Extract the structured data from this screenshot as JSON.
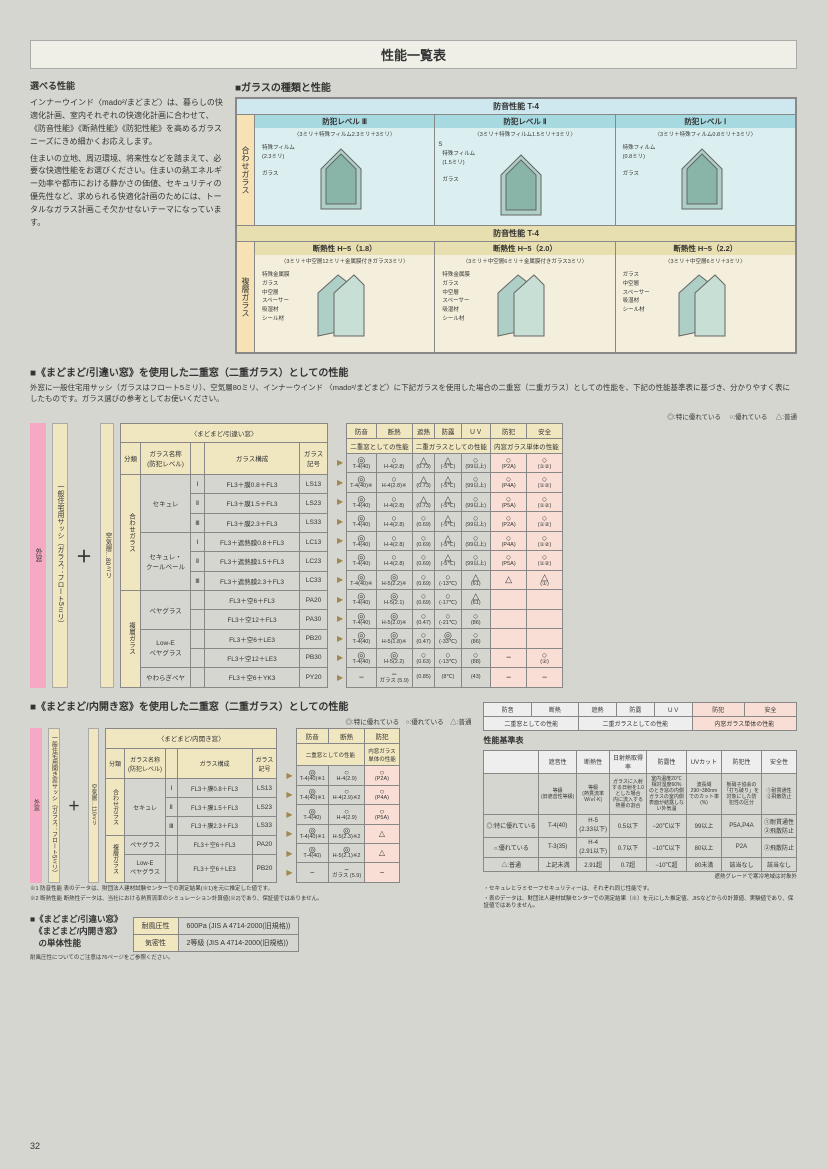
{
  "page_number": "32",
  "title": "性能一覧表",
  "intro": {
    "heading": "選べる性能",
    "p1": "インナーウインド〈mado²/まどまど〉は、暮らしの快適化計画、室内それぞれの快適化計画に合わせて、《防音性能》《断熱性能》《防犯性能》を高めるガラスニーズにきめ細かくお応えします。",
    "p2": "住まいの立地、周辺環境、将来性などを踏まえて、必要な快適性能をお選びください。住まいの熱エネルギー効率や都市における静かさの価値、セキュリティの優先性など、求められる快適化計画のためには、トータルなガラス計画こそ欠かせないテーマになっています。"
  },
  "glass_types": {
    "heading": "■ガラスの種類と性能",
    "band1": "防音性能  T-4",
    "band2": "防音性能  T-4",
    "group1_label": "合わせガラス",
    "group2_label": "複層ガラス",
    "levels1": [
      {
        "head": "防犯レベル Ⅲ",
        "sub": "〈3ミリ＋特殊フィルム2.3ミリ＋3ミリ〉",
        "l1": "特殊フィルム",
        "l1s": "(2.3ミリ)",
        "l2": "ガラス"
      },
      {
        "head": "防犯レベル Ⅱ",
        "sub": "〈3ミリ＋特殊フィルム1.5ミリ＋3ミリ〉",
        "l1": "特殊フィルム",
        "l1s": "(1.5ミリ)",
        "l2": "ガラス"
      },
      {
        "head": "防犯レベル Ⅰ",
        "sub": "〈3ミリ＋特殊フィルム0.8ミリ＋3ミリ〉",
        "l1": "特殊フィルム",
        "l1s": "(0.8ミリ)",
        "l2": "ガラス"
      }
    ],
    "levels2": [
      {
        "head": "断熱性 H−5（1.8）",
        "sub": "〈3ミリ＋中空層12ミリ＋金属膜付きガラス3ミリ〉",
        "labels": [
          "特殊金属膜",
          "ガラス",
          "中空層",
          "スペーサー",
          "吸湿材",
          "シール材"
        ]
      },
      {
        "head": "断熱性 H−5（2.0）",
        "sub": "〈3ミリ＋中空層6ミリ＋金属膜付きガラス3ミリ〉",
        "labels": [
          "特殊金属膜",
          "ガラス",
          "中空層",
          "スペーサー",
          "吸湿材",
          "シール材"
        ]
      },
      {
        "head": "断熱性 H−5（2.2）",
        "sub": "〈3ミリ＋中空層6ミリ＋3ミリ〉",
        "labels": [
          "ガラス",
          "中空層",
          "スペーサー",
          "吸湿材",
          "シール材"
        ]
      }
    ]
  },
  "section_sliding": {
    "heading": "■《まどまど/引違い窓》を使用した二重窓（二重ガラス）としての性能",
    "desc": "外窓に一般住宅用サッシ（ガラスはフロート5ミリ）、空気層80ミリ、インナーウインド 〈mado²/まどまど〉に下記ガラスを使用した場合の二重窓（二重ガラス）としての性能を、下記の性能基準表に基づき、分かりやすく表にしたものです。ガラス選びの参考としてお使いください。",
    "legend": "◎:特に優れている 　○:優れている 　△:普通",
    "outer_label": "外窓",
    "vbar_label": "一般住宅用サッシ（ガラス：フロート5ミリ）",
    "plus_label": "空気層…80ミリ",
    "tbl1": {
      "title": "〈まどまど/引違い窓〉",
      "cols": [
        "分類",
        "ガラス名称\n(防犯レベル)",
        "",
        "ガラス構成",
        "ガラス\n記号"
      ],
      "rows": [
        {
          "cat": "合わせガラス",
          "name": "セキュレ",
          "lvl": "Ⅰ",
          "comp": "FL3＋膜0.8＋FL3",
          "code": "LS13"
        },
        {
          "cat": "",
          "name": "",
          "lvl": "Ⅱ",
          "comp": "FL3＋膜1.5＋FL3",
          "code": "LS23"
        },
        {
          "cat": "",
          "name": "",
          "lvl": "Ⅲ",
          "comp": "FL3＋膜2.3＋FL3",
          "code": "LS33"
        },
        {
          "cat": "",
          "name": "セキュレ・\nクールベール",
          "lvl": "Ⅰ",
          "comp": "FL3＋遮熱膜0.8＋FL3",
          "code": "LC13"
        },
        {
          "cat": "",
          "name": "",
          "lvl": "Ⅱ",
          "comp": "FL3＋遮熱膜1.5＋FL3",
          "code": "LC23"
        },
        {
          "cat": "",
          "name": "",
          "lvl": "Ⅲ",
          "comp": "FL3＋遮熱膜2.3＋FL3",
          "code": "LC33"
        },
        {
          "cat": "複層ガラス",
          "name": "ペヤグラス",
          "lvl": "",
          "comp": "FL3＋空6＋FL3",
          "code": "PA20"
        },
        {
          "cat": "",
          "name": "",
          "lvl": "",
          "comp": "FL3＋空12＋FL3",
          "code": "PA30"
        },
        {
          "cat": "",
          "name": "Low-E\nペヤグラス",
          "lvl": "",
          "comp": "FL3＋空6＋LE3",
          "code": "PB20"
        },
        {
          "cat": "",
          "name": "",
          "lvl": "",
          "comp": "FL3＋空12＋LE3",
          "code": "PB30"
        },
        {
          "cat": "",
          "name": "やわらぎペヤ",
          "lvl": "",
          "comp": "FL3＋空6＋YK3",
          "code": "PY20"
        }
      ]
    },
    "tbl1r": {
      "heads": [
        "防音",
        "断熱",
        "遮熱",
        "防露",
        "ＵＶ",
        "防犯",
        "安全"
      ],
      "sub1": "二重窓としての性能",
      "sub2": "二重ガラスとしての性能",
      "sub3": "内窓ガラス単体の性能",
      "rows": [
        [
          "◎",
          "T-4(40)",
          "○",
          "H-4(2.8)",
          "△",
          "(0.73)",
          "△",
          "(-5℃)",
          "○",
          "(99以上)",
          "○",
          "(P2A)",
          "○",
          "(①②)"
        ],
        [
          "◎",
          "T-4(40)※",
          "○",
          "H-4(2.8)※",
          "△",
          "(0.73)",
          "△",
          "(-5℃)",
          "○",
          "(99以上)",
          "○",
          "(P4A)",
          "○",
          "(①②)"
        ],
        [
          "◎",
          "T-4(40)",
          "○",
          "H-4(2.8)",
          "△",
          "(0.73)",
          "△",
          "(-5℃)",
          "○",
          "(99以上)",
          "○",
          "(P5A)",
          "○",
          "(①②)"
        ],
        [
          "◎",
          "T-4(40)",
          "○",
          "H-4(2.8)",
          "○",
          "(0.69)",
          "△",
          "(-5℃)",
          "○",
          "(99以上)",
          "○",
          "(P2A)",
          "○",
          "(①②)"
        ],
        [
          "◎",
          "T-4(40)",
          "○",
          "H-4(2.8)",
          "○",
          "(0.69)",
          "△",
          "(-5℃)",
          "○",
          "(99以上)",
          "○",
          "(P4A)",
          "○",
          "(①②)"
        ],
        [
          "◎",
          "T-4(40)",
          "○",
          "H-4(2.8)",
          "○",
          "(0.69)",
          "△",
          "(-5℃)",
          "○",
          "(99以上)",
          "○",
          "(P5A)",
          "○",
          "(①②)"
        ],
        [
          "◎",
          "T-4(40)※",
          "◎",
          "H-5(2.2)※",
          "○",
          "(0.69)",
          "○",
          "(-13℃)",
          "△",
          "(61)",
          "△",
          "",
          "△",
          "(①)"
        ],
        [
          "◎",
          "T-4(40)",
          "◎",
          "H-5(2.1)",
          "○",
          "(0.69)",
          "○",
          "(-17℃)",
          "△",
          "(61)",
          "",
          "",
          "",
          ""
        ],
        [
          "◎",
          "T-4(40)",
          "◎",
          "H-5(2.0)※",
          "○",
          "(0.47)",
          "○",
          "(-21℃)",
          "○",
          "(86)",
          "",
          "",
          "",
          ""
        ],
        [
          "◎",
          "T-4(40)",
          "◎",
          "H-5(1.8)※",
          "○",
          "(0.47)",
          "◎",
          "(-33℃)",
          "○",
          "(86)",
          "",
          "",
          "",
          ""
        ],
        [
          "◎",
          "T-4(40)",
          "◎",
          "H-5(2.2)",
          "○",
          "(0.63)",
          "○",
          "(-13℃)",
          "○",
          "(88)",
          "−",
          "",
          "○",
          "(②)"
        ],
        [
          "−",
          "",
          "−",
          "ガラス\n(5.9)",
          "",
          "(0.85)",
          "",
          "(8℃)",
          "",
          "(43)",
          "−",
          "",
          "−",
          ""
        ]
      ]
    }
  },
  "section_open": {
    "heading": "■《まどまど/内開き窓》を使用した二重窓（二重ガラス）としての性能",
    "legend": "◎:特に優れている　○:優れている　△:普通",
    "outer_label": "外窓",
    "vbar_label": "一般住宅用開き窓サッシ（ガラス：フロート5ミリ）",
    "plus_label": "空気層…110ミリ",
    "tbl2": {
      "title": "〈まどまど/内開き窓〉",
      "cols": [
        "分類",
        "ガラス名称\n(防犯レベル)",
        "",
        "ガラス構成",
        "ガラス\n記号"
      ],
      "rows": [
        {
          "cat": "合わせガラス",
          "name": "セキュレ",
          "lvl": "Ⅰ",
          "comp": "FL3＋膜0.8＋FL3",
          "code": "LS13"
        },
        {
          "cat": "",
          "name": "",
          "lvl": "Ⅱ",
          "comp": "FL3＋膜1.5＋FL3",
          "code": "LS23"
        },
        {
          "cat": "",
          "name": "",
          "lvl": "Ⅲ",
          "comp": "FL3＋膜2.3＋FL3",
          "code": "LS33"
        },
        {
          "cat": "複層ガラス",
          "name": "ペヤグラス",
          "lvl": "",
          "comp": "FL3＋空6＋FL3",
          "code": "PA20"
        },
        {
          "cat": "",
          "name": "Low-E\nペヤグラス",
          "lvl": "",
          "comp": "FL3＋空6＋LE3",
          "code": "PB20"
        }
      ]
    },
    "tbl2r": {
      "heads": [
        "防音",
        "断熱",
        "防犯"
      ],
      "sub1": "二重窓としての性能",
      "sub2": "内窓ガラス\n単体の性能",
      "rows": [
        [
          "◎",
          "T-4(40)※1",
          "○",
          "H-4(2.9)",
          "○",
          "(P2A)"
        ],
        [
          "◎",
          "T-4(40)※1",
          "○",
          "H-4(2.9)※2",
          "○",
          "(P4A)"
        ],
        [
          "◎",
          "T-4(40)",
          "○",
          "H-4(2.9)",
          "○",
          "(P5A)"
        ],
        [
          "◎",
          "T-4(40)※1",
          "◎",
          "H-5(2.3)※2",
          "△",
          ""
        ],
        [
          "◎",
          "T-4(40)",
          "◎",
          "H-5(2.1)※2",
          "△",
          ""
        ],
        [
          "−",
          "",
          "−",
          "ガラス\n(5.9)",
          "−",
          ""
        ]
      ]
    },
    "notes": [
      "※1 防音性能 表のデータは、財団法人建材試験センターでの測定結果(※1)を元に推定した値です。",
      "※2 断熱性能 断熱性データは、当社における熱貫流率のシミュレーション計算値(※2)であり、保証値ではありません。"
    ]
  },
  "criteria": {
    "title": "性能基準表",
    "cols_top": [
      "防音",
      "断熱",
      "遮熱",
      "防露",
      "ＵＶ",
      "防犯",
      "安全"
    ],
    "sub1": "二重窓としての性能",
    "sub2": "二重ガラスとしての性能",
    "sub3": "内窓ガラス単体の性能",
    "cols": [
      "",
      "遮音性",
      "断熱性",
      "日射熱取得率",
      "防露性",
      "UVカット",
      "防犯性",
      "安全性"
    ],
    "unit_row": [
      "",
      "等級\n(旧遮音性等級)",
      "等級\n(熱貫流率\nW/㎡·K)",
      "ガラスに入射\nする日射を1.0\nとした場合\n内に流入する\n熱量の割合",
      "室内温度20℃\n相対湿度60%\nのとき窓の内側\nガラスの室内側\n表面が結露しな\nい外気温",
      "波長域\n290~380nm\nでのカット率\n(%)",
      "板硝子協会の\n「打ち破り」を\n対象にした防\n犯性の区分",
      "①耐貫通性\n②飛散防止"
    ],
    "rows": [
      [
        "◎:特に優れている",
        "T-4(40)",
        "H-5\n(2.33以下)",
        "0.5以下",
        "−20℃以下",
        "99以上",
        "P5A,P4A",
        "①耐貫通性\n②飛散防止"
      ],
      [
        "○:優れている",
        "T-3(35)",
        "H-4\n(2.91以下)",
        "0.7以下",
        "−10℃以下",
        "80以上",
        "P2A",
        "②飛散防止"
      ],
      [
        "△:普通",
        "上記未満",
        "2.91超",
        "0.7超",
        "−10℃超",
        "80未満",
        "該当なし",
        "該当なし"
      ]
    ],
    "footnote": "遮熱グレードで寒冷地域は対象外",
    "bullets": [
      "・セキュレとラミセーフセキュリティーは、それぞれ同じ性能です。",
      "・表のデータは、財団法人建材試験センターでの測定結果（※）を元にした推定値、JISなどからの計算値、実験値であり、保証値ではありません。"
    ]
  },
  "single_perf": {
    "heading": "■《まどまど/引違い窓》\n　《まどまど/内開き窓》\n　の単体性能",
    "rows": [
      [
        "耐風圧性",
        "600Pa (JIS A 4714-2000(旧規格))"
      ],
      [
        "気密性",
        "2等級 (JIS A 4714-2000(旧規格))"
      ]
    ],
    "note": "耐風圧性についてのご注意は76ページをご参照ください。"
  }
}
